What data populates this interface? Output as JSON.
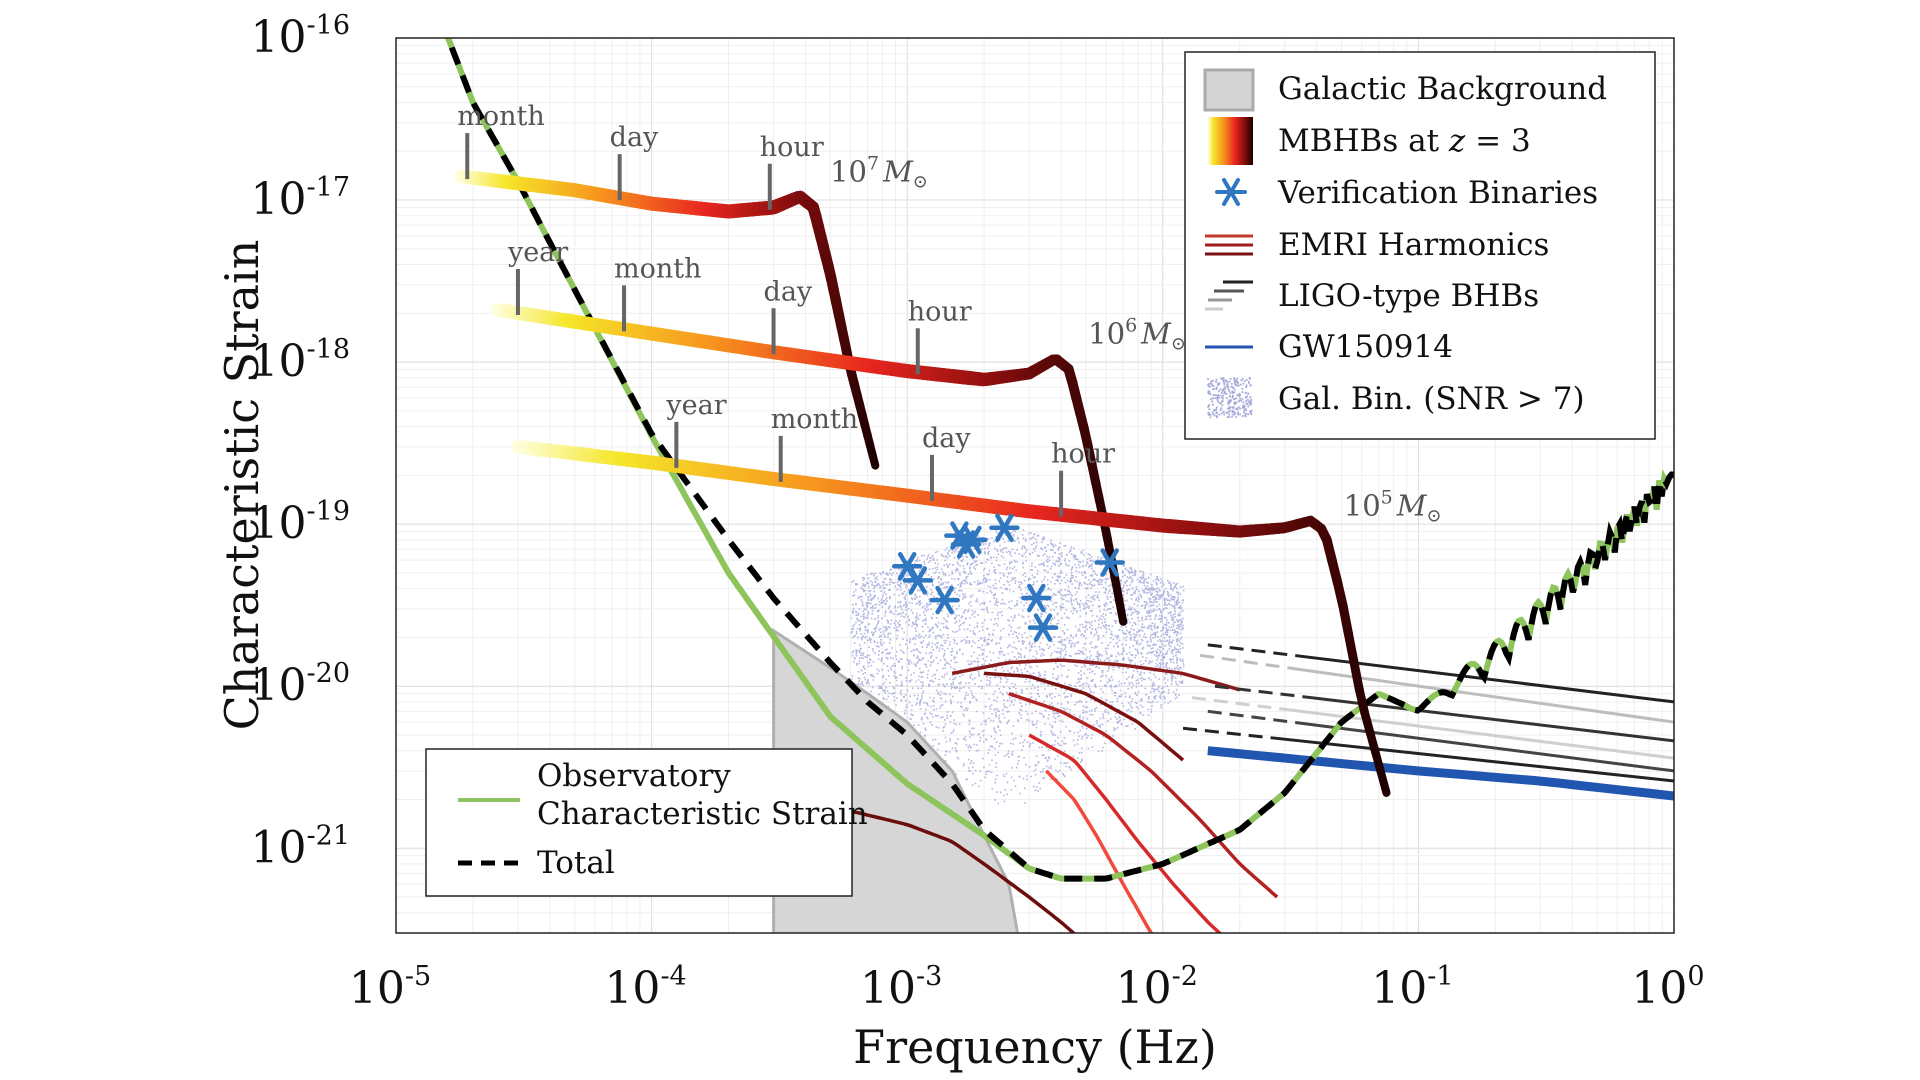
{
  "chart_data": {
    "type": "line",
    "title": "",
    "xlabel": "Frequency (Hz)",
    "ylabel": "Characteristic Strain",
    "x_scale": "log",
    "y_scale": "log",
    "xlim": [
      1e-05,
      1
    ],
    "ylim": [
      3e-22,
      1e-16
    ],
    "grid": true,
    "x_ticks": [
      {
        "base": "10",
        "exp": "-5",
        "value": 1e-05
      },
      {
        "base": "10",
        "exp": "-4",
        "value": 0.0001
      },
      {
        "base": "10",
        "exp": "-3",
        "value": 0.001
      },
      {
        "base": "10",
        "exp": "-2",
        "value": 0.01
      },
      {
        "base": "10",
        "exp": "-1",
        "value": 0.1
      },
      {
        "base": "10",
        "exp": "0",
        "value": 1
      }
    ],
    "y_ticks": [
      {
        "base": "10",
        "exp": "-16",
        "value": 1e-16
      },
      {
        "base": "10",
        "exp": "-17",
        "value": 1e-17
      },
      {
        "base": "10",
        "exp": "-18",
        "value": 1e-18
      },
      {
        "base": "10",
        "exp": "-19",
        "value": 1e-19
      },
      {
        "base": "10",
        "exp": "-20",
        "value": 1e-20
      },
      {
        "base": "10",
        "exp": "-21",
        "value": 1e-21
      }
    ],
    "legend_top_right": {
      "placement": "top-right",
      "entries": [
        "Galactic Background",
        "MBHBs at ",
        "Verification Binaries",
        "EMRI Harmonics",
        "LIGO-type BHBs",
        "GW150914",
        "Gal. Bin. (SNR > 7)"
      ],
      "mbhb_z_var": "z",
      "mbhb_z_value": "= 3"
    },
    "legend_bottom_left": {
      "placement": "bottom-left",
      "entries": [
        "Observatory",
        "Characteristic Strain",
        "Total"
      ]
    },
    "colors": {
      "observatory": "#8dc55c",
      "total": "#000000",
      "galactic_background": "#d4d4d4",
      "verification": "#2f77c0",
      "gal_bin": "#a6a9dc",
      "emri": "#8b1a1a",
      "ligo": "#333333",
      "gw150914": "#2156b0"
    },
    "series": [
      {
        "name": "Observatory Characteristic Strain",
        "x": [
          1.5e-05,
          2e-05,
          3e-05,
          5e-05,
          0.0001,
          0.0002,
          0.0005,
          0.001,
          0.002,
          0.003,
          0.004,
          0.006,
          0.01,
          0.02,
          0.03,
          0.05,
          0.07,
          0.1,
          0.2,
          0.5,
          1
        ],
        "y": [
          1.3e-16,
          4e-17,
          1.3e-17,
          2.8e-18,
          3.5e-19,
          5e-20,
          6.5e-21,
          2.5e-21,
          1.2e-21,
          7.5e-22,
          6.5e-22,
          6.5e-22,
          8e-22,
          1.3e-21,
          2.2e-21,
          6e-21,
          9e-21,
          7e-21,
          1.5e-20,
          6e-20,
          1.9e-19
        ]
      },
      {
        "name": "Total",
        "x": [
          1.5e-05,
          2e-05,
          3e-05,
          5e-05,
          0.0001,
          0.0002,
          0.0003,
          0.0005,
          0.0007,
          0.001,
          0.0015,
          0.002,
          0.003,
          0.004,
          0.006,
          0.01,
          0.02,
          0.03,
          0.05,
          0.07,
          0.1,
          0.2,
          0.5,
          1
        ],
        "y": [
          1.3e-16,
          4e-17,
          1.3e-17,
          2.8e-18,
          3.6e-19,
          8e-20,
          3.5e-20,
          1.4e-20,
          8e-21,
          5e-21,
          2.5e-21,
          1.3e-21,
          7.5e-22,
          6.5e-22,
          6.5e-22,
          8e-22,
          1.3e-21,
          2.2e-21,
          6e-21,
          9e-21,
          7e-21,
          1.5e-20,
          6e-20,
          1.9e-19
        ]
      },
      {
        "name": "MBHB 10^7 M☉",
        "x": [
          1.8e-05,
          5e-05,
          0.0001,
          0.0002,
          0.0003,
          0.00038,
          0.00043,
          0.0005,
          0.0006,
          0.00075
        ],
        "y": [
          1.4e-17,
          1.15e-17,
          9.5e-18,
          8.5e-18,
          9e-18,
          1.05e-17,
          9e-18,
          3.5e-18,
          9e-19,
          2.3e-19
        ]
      },
      {
        "name": "MBHB 10^6 M☉",
        "x": [
          2.5e-05,
          0.0001,
          0.0003,
          0.001,
          0.002,
          0.003,
          0.0038,
          0.0043,
          0.005,
          0.006,
          0.007
        ],
        "y": [
          2.1e-18,
          1.5e-18,
          1.15e-18,
          8.8e-19,
          7.8e-19,
          8.5e-19,
          1.05e-18,
          9e-19,
          3.5e-19,
          9e-20,
          2.5e-20
        ]
      },
      {
        "name": "MBHB 10^5 M☉",
        "x": [
          3e-05,
          0.0001,
          0.0003,
          0.001,
          0.003,
          0.01,
          0.02,
          0.03,
          0.038,
          0.043,
          0.05,
          0.06,
          0.075
        ],
        "y": [
          3e-19,
          2.4e-19,
          1.9e-19,
          1.5e-19,
          1.2e-19,
          9.8e-20,
          9e-20,
          9.5e-20,
          1.05e-19,
          9e-20,
          3.5e-20,
          8e-21,
          2.2e-21
        ]
      },
      {
        "name": "GW150914",
        "x": [
          0.015,
          0.03,
          0.1,
          0.3,
          1
        ],
        "y": [
          4e-21,
          3.6e-21,
          3e-21,
          2.6e-21,
          2.1e-21
        ]
      }
    ],
    "mass_labels": [
      {
        "text": "10",
        "exp": "7",
        "unit": "M",
        "x": 0.00044,
        "y": 1.5e-17
      },
      {
        "text": "10",
        "exp": "6",
        "unit": "M",
        "x": 0.0045,
        "y": 1.5e-18
      },
      {
        "text": "10",
        "exp": "5",
        "unit": "M",
        "x": 0.045,
        "y": 1.3e-19
      }
    ],
    "time_markers": [
      {
        "text": "month",
        "x": 1.9e-05,
        "curve": 0
      },
      {
        "text": "day",
        "x": 7.5e-05,
        "curve": 0
      },
      {
        "text": "hour",
        "x": 0.00029,
        "curve": 0
      },
      {
        "text": "year",
        "x": 3e-05,
        "curve": 1
      },
      {
        "text": "month",
        "x": 7.8e-05,
        "curve": 1
      },
      {
        "text": "day",
        "x": 0.0003,
        "curve": 1
      },
      {
        "text": "hour",
        "x": 0.0011,
        "curve": 1
      },
      {
        "text": "year",
        "x": 0.000125,
        "curve": 2
      },
      {
        "text": "month",
        "x": 0.00032,
        "curve": 2
      },
      {
        "text": "day",
        "x": 0.00125,
        "curve": 2
      },
      {
        "text": "hour",
        "x": 0.004,
        "curve": 2
      }
    ],
    "galactic_background": {
      "x": [
        0.0003,
        0.0005,
        0.0007,
        0.001,
        0.0015,
        0.002,
        0.0025,
        0.0027
      ],
      "y": [
        2.2e-20,
        1.3e-20,
        9e-21,
        6e-21,
        3e-21,
        1.2e-21,
        6e-22,
        3e-22
      ]
    },
    "verification_binaries": {
      "x": [
        0.001,
        0.0011,
        0.0014,
        0.0016,
        0.0017,
        0.0018,
        0.0024,
        0.0032,
        0.0034,
        0.0062
      ],
      "y": [
        5.5e-20,
        4.5e-20,
        3.4e-20,
        8.5e-20,
        7.5e-20,
        8e-20,
        9.5e-20,
        3.5e-20,
        2.3e-20,
        5.8e-20
      ]
    },
    "emri_harmonics": [
      {
        "x": [
          0.0015,
          0.0025,
          0.004,
          0.007,
          0.012,
          0.02
        ],
        "y": [
          1.2e-20,
          1.4e-20,
          1.45e-20,
          1.35e-20,
          1.2e-20,
          9.5e-21
        ]
      },
      {
        "x": [
          0.002,
          0.003,
          0.005,
          0.008,
          0.012
        ],
        "y": [
          1.2e-20,
          1.15e-20,
          9e-21,
          6e-21,
          3.5e-21
        ]
      },
      {
        "x": [
          0.0025,
          0.004,
          0.006,
          0.009,
          0.014,
          0.02,
          0.028
        ],
        "y": [
          9e-21,
          7e-21,
          5e-21,
          3e-21,
          1.5e-21,
          8e-22,
          5e-22
        ]
      },
      {
        "x": [
          0.003,
          0.0045,
          0.006,
          0.008,
          0.011,
          0.015,
          0.02,
          0.024
        ],
        "y": [
          5e-21,
          3.5e-21,
          2e-21,
          1.1e-21,
          6e-22,
          3.5e-22,
          2.3e-22,
          1.8e-22
        ]
      },
      {
        "x": [
          0.0035,
          0.0045,
          0.0055,
          0.007,
          0.009,
          0.012
        ],
        "y": [
          3e-21,
          2e-21,
          1.2e-21,
          6e-22,
          3e-22,
          1.5e-22
        ]
      },
      {
        "x": [
          0.0006,
          0.001,
          0.0015,
          0.002,
          0.003,
          0.004,
          0.006,
          0.008
        ],
        "y": [
          1.7e-21,
          1.4e-21,
          1.1e-21,
          8e-22,
          5e-22,
          3.5e-22,
          2e-22,
          1.3e-22
        ]
      }
    ],
    "ligo_bhbs": [
      {
        "x": [
          0.015,
          1
        ],
        "y": [
          1.8e-20,
          8e-21
        ],
        "shade": "#222222"
      },
      {
        "x": [
          0.014,
          1
        ],
        "y": [
          1.55e-20,
          6e-21
        ],
        "shade": "#bdbdbd"
      },
      {
        "x": [
          0.016,
          1
        ],
        "y": [
          1e-20,
          4.6e-21
        ],
        "shade": "#333333"
      },
      {
        "x": [
          0.013,
          1
        ],
        "y": [
          8.5e-21,
          3.6e-21
        ],
        "shade": "#cfcfcf"
      },
      {
        "x": [
          0.015,
          1
        ],
        "y": [
          7e-21,
          3e-21
        ],
        "shade": "#444444"
      },
      {
        "x": [
          0.012,
          1
        ],
        "y": [
          5.5e-21,
          2.6e-21
        ],
        "shade": "#222222"
      }
    ],
    "gal_bin_cloud": {
      "fmin": 0.0006,
      "fmax": 0.012,
      "hmin": 1.5e-21,
      "hmax": 2e-19,
      "count": 4500
    }
  }
}
